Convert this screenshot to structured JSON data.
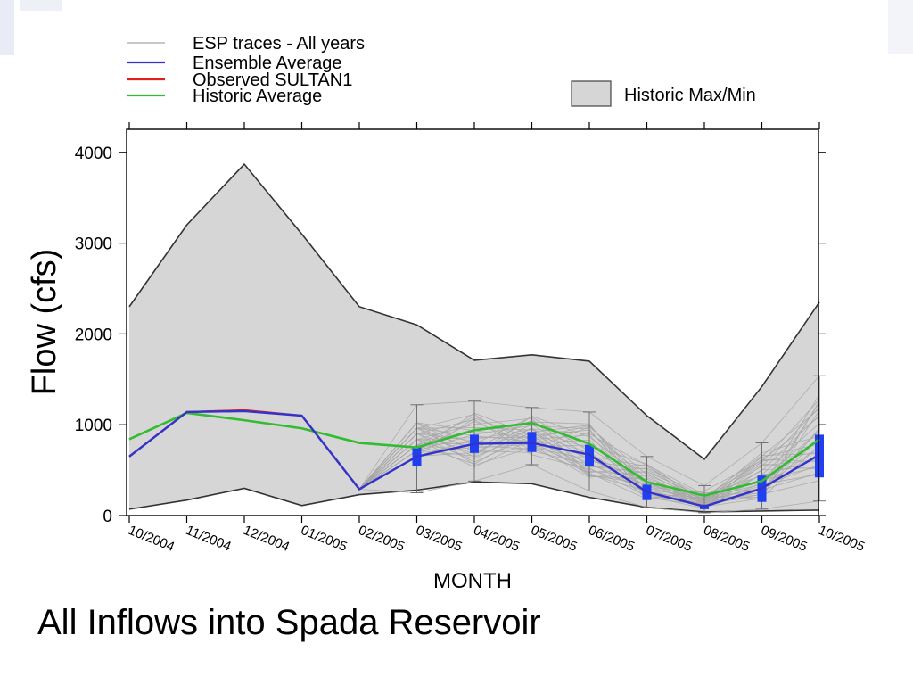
{
  "caption": "All Inflows into Spada Reservoir",
  "colors": {
    "esp": "#a6a6a6",
    "ensemble": "#3333cc",
    "observed": "#e02020",
    "historic": "#33bb33",
    "band": "#d6d6d6",
    "box": "#1f3ff0"
  },
  "chart_data": {
    "type": "line",
    "title": "",
    "xlabel": "MONTH",
    "ylabel": "Flow (cfs)",
    "ylim": [
      0,
      4300
    ],
    "yticks": [
      0,
      1000,
      2000,
      3000,
      4000
    ],
    "grid": false,
    "legend_position": "top",
    "categories": [
      "10/2004",
      "11/2004",
      "12/2004",
      "01/2005",
      "02/2005",
      "03/2005",
      "04/2005",
      "05/2005",
      "06/2005",
      "07/2005",
      "08/2005",
      "09/2005",
      "10/2005"
    ],
    "legend": [
      {
        "name": "ESP traces - All years",
        "kind": "line",
        "color": "#a6a6a6"
      },
      {
        "name": "Ensemble Average",
        "kind": "line",
        "color": "#3333cc"
      },
      {
        "name": "Observed SULTAN1",
        "kind": "line",
        "color": "#e02020"
      },
      {
        "name": "Historic Average",
        "kind": "line",
        "color": "#33bb33"
      },
      {
        "name": "Historic Max/Min",
        "kind": "box",
        "color": "#d6d6d6"
      }
    ],
    "series": [
      {
        "name": "Historic Max/Min",
        "type": "band",
        "max": [
          2300,
          3200,
          3870,
          3100,
          2300,
          2100,
          1710,
          1770,
          1700,
          1100,
          620,
          1420,
          2350
        ],
        "min": [
          70,
          170,
          300,
          110,
          230,
          280,
          370,
          350,
          200,
          90,
          40,
          50,
          60
        ]
      },
      {
        "name": "Historic Average",
        "values": [
          840,
          1130,
          1050,
          960,
          800,
          750,
          940,
          1020,
          790,
          370,
          220,
          380,
          840
        ]
      },
      {
        "name": "Ensemble Average",
        "values": [
          650,
          1140,
          1150,
          1100,
          290,
          650,
          790,
          800,
          670,
          260,
          100,
          300,
          670
        ]
      },
      {
        "name": "Observed SULTAN1",
        "values": [
          650,
          1140,
          1160,
          1100,
          290,
          null,
          null,
          null,
          null,
          null,
          null,
          null,
          null
        ]
      },
      {
        "name": "ESP traces - All years",
        "type": "spread",
        "start_index": 4,
        "high": [
          290,
          1220,
          1260,
          1190,
          1140,
          650,
          330,
          800,
          1540
        ],
        "low": [
          290,
          250,
          380,
          560,
          270,
          90,
          30,
          70,
          160
        ]
      },
      {
        "name": "ESP box",
        "type": "box",
        "start_index": 5,
        "q1": [
          540,
          690,
          700,
          540,
          170,
          70,
          150,
          420
        ],
        "q3": [
          760,
          890,
          920,
          780,
          340,
          120,
          440,
          890
        ]
      }
    ]
  }
}
